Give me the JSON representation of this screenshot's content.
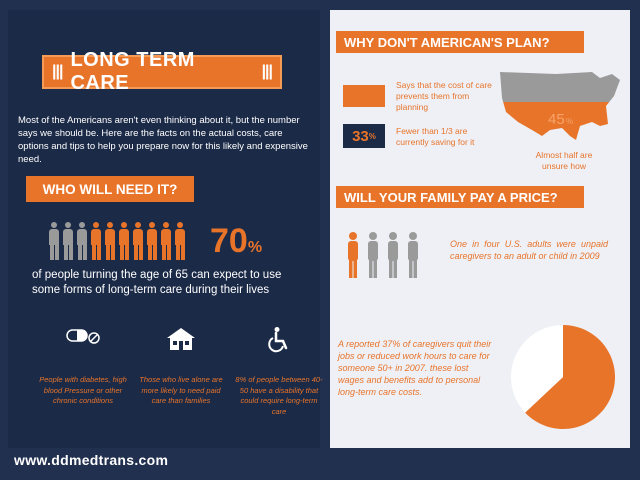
{
  "left": {
    "title": "LONG TERM CARE",
    "intro": "Most of the Americans aren't even thinking about it, but the number says we should be. Here are the facts on the actual costs, care options and tips to help you prepare now for this likely and expensive need.",
    "who_title": "WHO WILL NEED IT?",
    "people_total": 10,
    "people_highlighted": 7,
    "stat_value": "70",
    "stat_unit": "%",
    "stat_text": "of people turning the age of 65 can expect to use some forms of long-term care during their lives",
    "icons": [
      {
        "icon": "pill-icon",
        "caption": "People with diabetes, high blood Pressure or other chronic conditions"
      },
      {
        "icon": "house-icon",
        "caption": "Those who live alone are more likely to need paid care than families"
      },
      {
        "icon": "wheelchair-icon",
        "caption": "8% of people between 40-50 have a disability that could require long-term care"
      }
    ],
    "url": "www.ddmedtrans.com"
  },
  "right": {
    "plan_title": "WHY DON'T AMERICAN'S PLAN?",
    "cost_text": "Says that the cost of care prevents them from planning",
    "saving_value": "33",
    "saving_unit": "%",
    "saving_text": "Fewer than 1/3 are currently saving for it",
    "map_value": "45",
    "map_unit": "%",
    "map_caption": "Almost half are unsure how",
    "family_title": "WILL YOUR FAMILY PAY A PRICE?",
    "family_text": "One in four U.S. adults were unpaid caregivers to an adult or child in 2009",
    "caregiver_text": "A reported 37% of caregivers quit their jobs or reduced work hours to care for someone 50+ in 2007. these lost wages and benefits add to personal long-term care costs.",
    "pie_fraction": 0.37
  },
  "colors": {
    "accent": "#e8742a",
    "navy": "#1b2a47",
    "grey": "#9a9a9a"
  }
}
